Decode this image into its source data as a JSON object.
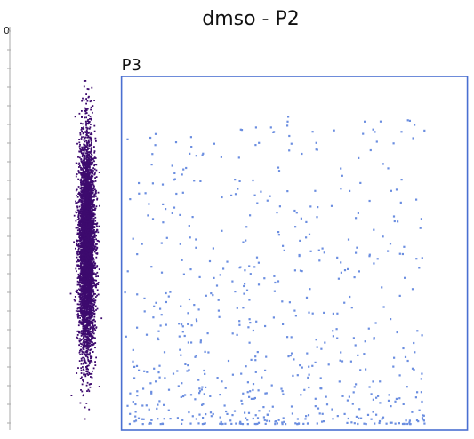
{
  "chart_data": {
    "type": "scatter",
    "title": "dmso - P2",
    "xlabel": "",
    "ylabel": "",
    "axis_fragment": "0",
    "xlim": [
      0,
      1000
    ],
    "ylim": [
      0,
      1000
    ],
    "grid": false,
    "gate": {
      "name": "P3",
      "x_range": [
        110,
        990
      ],
      "y_range": [
        0,
        1000
      ],
      "color": "#4a6fd1"
    },
    "populations": [
      {
        "name": "",
        "color": "#3d0a6e",
        "count": 5000,
        "x_center": 20,
        "x_sd": 10,
        "y_center": 520,
        "y_sd": 150
      },
      {
        "name": "",
        "color": "#6b8ee0",
        "count": 650,
        "x_range": [
          115,
          880
        ],
        "y_mode": "skewed-low"
      }
    ]
  }
}
